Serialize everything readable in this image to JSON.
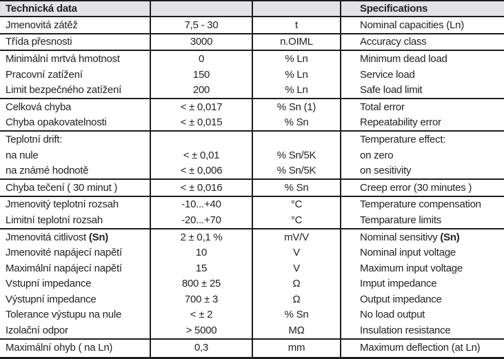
{
  "title_header": {
    "czech": "Technická data",
    "english": "Specifications"
  },
  "groups": [
    {
      "rows": [
        {
          "cz": "Jmenovitá zátěž",
          "value": "7,5 - 30",
          "unit": "t",
          "en": "Nominal capacities (Ln)"
        }
      ]
    },
    {
      "rows": [
        {
          "cz": "Třída přesnosti",
          "value": "3000",
          "unit": "n.OIML",
          "en": "Accuracy class"
        }
      ]
    },
    {
      "rows": [
        {
          "cz": "Minimální mrtvá hmotnost",
          "value": "0",
          "unit": "% Ln",
          "en": "Minimum dead load"
        },
        {
          "cz": "Pracovní zatížení",
          "value": "150",
          "unit": "% Ln",
          "en": "Service load"
        },
        {
          "cz": "Limit bezpečného zatížení",
          "value": "200",
          "unit": "% Ln",
          "en": "Safe load limit"
        }
      ]
    },
    {
      "rows": [
        {
          "cz": "Celková chyba",
          "value": "< ± 0,017",
          "unit": "% Sn (1)",
          "en": "Total error"
        },
        {
          "cz": "Chyba opakovatelnosti",
          "value": "< ± 0,015",
          "unit": "% Sn",
          "en": "Repeatability error"
        }
      ]
    },
    {
      "rows": [
        {
          "cz": "Teplotní drift:",
          "value": "",
          "unit": "",
          "en": "Temperature effect:"
        },
        {
          "cz": "na nule",
          "value": "< ± 0,01",
          "unit": "% Sn/5K",
          "en": "on zero"
        },
        {
          "cz": "na známé hodnotě",
          "value": "< ± 0,006",
          "unit": "% Sn/5K",
          "en": "on sesitivity"
        }
      ]
    },
    {
      "rows": [
        {
          "cz": "Chyba tečení ( 30 minut )",
          "value": "< ± 0,016",
          "unit": "% Sn",
          "en": "Creep error (30 minutes )"
        }
      ]
    },
    {
      "rows": [
        {
          "cz": "Jmenovitý teplotní rozsah",
          "value": "-10...+40",
          "unit": "°C",
          "en": "Temperature compensation"
        },
        {
          "cz": "Limitní teplotní rozsah",
          "value": "-20...+70",
          "unit": "°C",
          "en": "Temparature limits"
        }
      ]
    },
    {
      "rows": [
        {
          "cz": "Jmenovitá citlivost ",
          "cz_bold": "(Sn)",
          "value": "2 ± 0,1 %",
          "unit": "mV/V",
          "en": "Nominal sensitivy ",
          "en_bold": "(Sn)"
        },
        {
          "cz": "Jmenovité napájecí napětí",
          "value": "10",
          "unit": "V",
          "en": "Nominal input voltage"
        },
        {
          "cz": "Maximální napájecí napětí",
          "value": "15",
          "unit": "V",
          "en": "Maximum input voltage"
        },
        {
          "cz": "Vstupní impedance",
          "value": "800 ± 25",
          "unit": "Ω",
          "en": "Imput impedance"
        },
        {
          "cz": "Výstupní impedance",
          "value": "700 ± 3",
          "unit": "Ω",
          "en": "Output impedance"
        },
        {
          "cz": "Tolerance výstupu na nule",
          "value": "< ± 2",
          "unit": "% Sn",
          "en": "No load output"
        },
        {
          "cz": "Izolační odpor",
          "value": "> 5000",
          "unit": "MΩ",
          "en": "Insulation resistance"
        }
      ]
    },
    {
      "rows": [
        {
          "cz": "Maximální ohyb ( na Ln)",
          "value": "0,3",
          "unit": "mm",
          "en": "Maximum deflection (at Ln)"
        }
      ]
    }
  ],
  "colors": {
    "header_bg": "#e3e3e5",
    "line": "#1c1c1e",
    "text": "#222225"
  }
}
